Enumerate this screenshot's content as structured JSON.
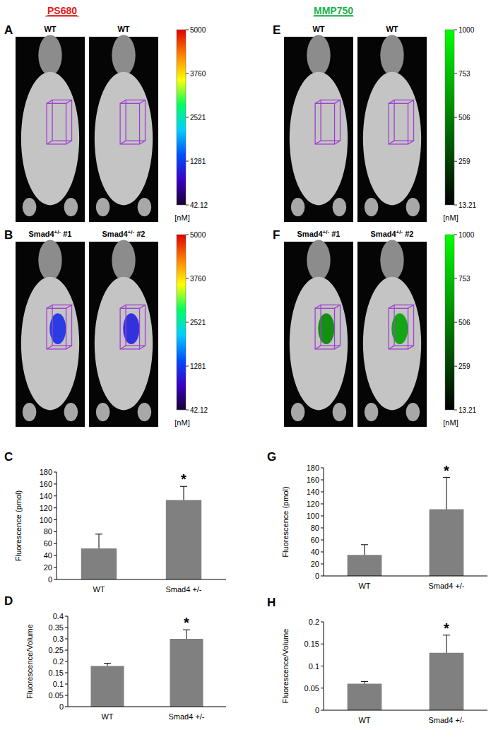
{
  "headings": [
    {
      "text": "PS680",
      "color": "#e0201b"
    },
    {
      "text": "MMP750",
      "color": "#22b14c"
    }
  ],
  "chart_data": [
    {
      "type": "image",
      "panel": "A",
      "heading": 0,
      "images": [
        {
          "title": "WT",
          "signal": null
        },
        {
          "title": "WT",
          "signal": null
        }
      ],
      "colorbar": {
        "range": [
          42.12,
          5000
        ],
        "ticks": [
          42.12,
          1281,
          2521,
          3760,
          5000
        ],
        "unit": "[nM]",
        "colors": [
          "#1a0030",
          "#3a00c8",
          "#0050ff",
          "#00d0ff",
          "#00ff60",
          "#ffff00",
          "#ff8000",
          "#e00000"
        ]
      }
    },
    {
      "type": "image",
      "panel": "B",
      "heading": 0,
      "images": [
        {
          "title": "Smad4+/-  #1",
          "signal": 1150
        },
        {
          "title": "Smad4+/-  #2",
          "signal": 1050
        }
      ],
      "colorbar": {
        "range": [
          42.12,
          5000
        ],
        "ticks": [
          42.12,
          1281,
          2521,
          3760,
          5000
        ],
        "unit": "[nM]",
        "colors": [
          "#1a0030",
          "#3a00c8",
          "#0050ff",
          "#00d0ff",
          "#00ff60",
          "#ffff00",
          "#ff8000",
          "#e00000"
        ]
      }
    },
    {
      "type": "image",
      "panel": "E",
      "heading": 1,
      "images": [
        {
          "title": "WT",
          "signal": null
        },
        {
          "title": "WT",
          "signal": null
        }
      ],
      "colorbar": {
        "range": [
          13.21,
          1000
        ],
        "ticks": [
          13.21,
          259,
          506,
          753,
          1000
        ],
        "unit": "[nM]",
        "colors": [
          "#000000",
          "#00ff00"
        ]
      }
    },
    {
      "type": "image",
      "panel": "F",
      "heading": 1,
      "images": [
        {
          "title": "Smad4+/-  #1",
          "signal": 550
        },
        {
          "title": "Smad4+/-  #2",
          "signal": 650
        }
      ],
      "colorbar": {
        "range": [
          13.21,
          1000
        ],
        "ticks": [
          13.21,
          259,
          506,
          753,
          1000
        ],
        "unit": "[nM]",
        "colors": [
          "#000000",
          "#00ff00"
        ]
      }
    },
    {
      "type": "bar",
      "panel": "C",
      "y_label": "Fluorescence (pmol)",
      "categories": [
        "WT",
        "Smad4 +/-"
      ],
      "values": [
        52,
        133
      ],
      "errors": [
        24,
        23
      ],
      "annotations": [
        {
          "text": "*",
          "category": 1
        }
      ],
      "color": "#808080",
      "ylim": [
        0,
        180
      ],
      "yticks": [
        0,
        20,
        40,
        60,
        80,
        100,
        120,
        140,
        160,
        180
      ],
      "grid": false
    },
    {
      "type": "bar",
      "panel": "D",
      "y_label": "Fluorescence/Volume",
      "categories": [
        "WT",
        "Smad4 +/-"
      ],
      "values": [
        0.18,
        0.3
      ],
      "errors": [
        0.012,
        0.04
      ],
      "annotations": [
        {
          "text": "*",
          "category": 1
        }
      ],
      "color": "#808080",
      "ylim": [
        0,
        0.4
      ],
      "yticks": [
        0,
        0.05,
        0.1,
        0.15,
        0.2,
        0.25,
        0.3,
        0.35,
        0.4
      ],
      "grid": false
    },
    {
      "type": "bar",
      "panel": "G",
      "y_label": "Fluorescence (pmol)",
      "categories": [
        "WT",
        "Smad4 +/-"
      ],
      "values": [
        35,
        111
      ],
      "errors": [
        17,
        53
      ],
      "annotations": [
        {
          "text": "*",
          "category": 1
        }
      ],
      "color": "#808080",
      "ylim": [
        0,
        180
      ],
      "yticks": [
        0,
        20,
        40,
        60,
        80,
        100,
        120,
        140,
        160,
        180
      ],
      "grid": false
    },
    {
      "type": "bar",
      "panel": "H",
      "y_label": "Fluorescence/Volume",
      "categories": [
        "WT",
        "Smad4 +/-"
      ],
      "values": [
        0.06,
        0.13
      ],
      "errors": [
        0.005,
        0.04
      ],
      "annotations": [
        {
          "text": "*",
          "category": 1
        }
      ],
      "color": "#808080",
      "ylim": [
        0,
        0.2
      ],
      "yticks": [
        0,
        0.05,
        0.1,
        0.15,
        0.2
      ],
      "grid": false
    }
  ]
}
